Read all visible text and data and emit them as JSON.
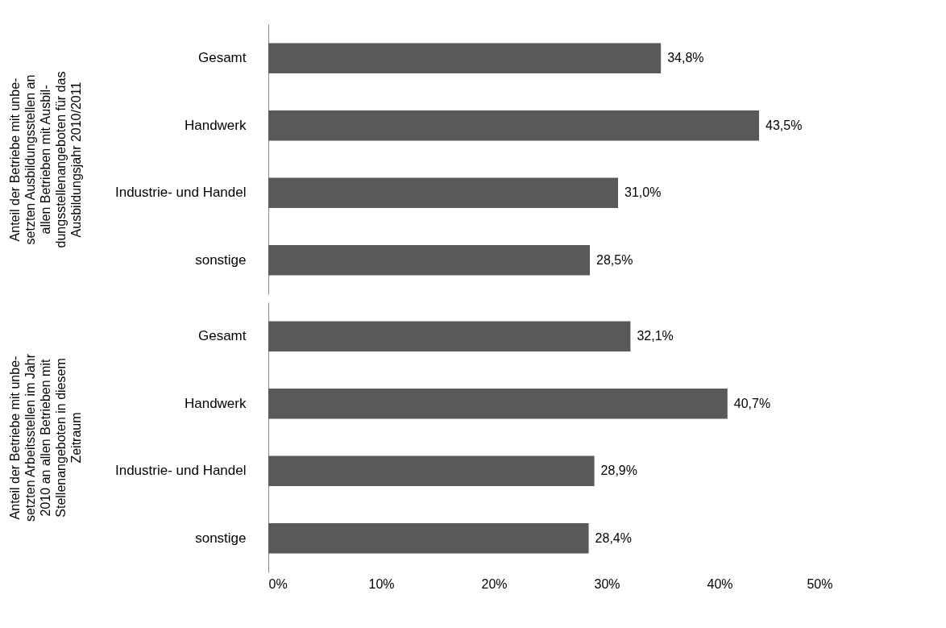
{
  "chart_data": [
    {
      "type": "bar",
      "orientation": "horizontal",
      "ylabel": "Anteil der Betriebe mit unbe-\nsetzten Ausbildungsstellen an\nallen Betrieben mit Ausbil-\ndungsstellenangeboten für das\nAusbildungsjahr 2010/2011",
      "categories": [
        "Gesamt",
        "Handwerk",
        "Industrie- und Handel",
        "sonstige"
      ],
      "values": [
        34.8,
        43.5,
        31.0,
        28.5
      ],
      "value_labels": [
        "34,8%",
        "43,5%",
        "31,0%",
        "28,5%"
      ],
      "color": "#595959",
      "xlim": [
        0,
        50
      ],
      "tick_labels": "y",
      "grid": false
    },
    {
      "type": "bar",
      "orientation": "horizontal",
      "ylabel": "Anteil der Betriebe mit unbe-\nsetzten Arbeitsstellen im Jahr\n2010 an allen Betrieben mit\nStellenangeboten in diesem\nZeitraum",
      "categories": [
        "Gesamt",
        "Handwerk",
        "Industrie- und Handel",
        "sonstige"
      ],
      "values": [
        32.1,
        40.7,
        28.9,
        28.4
      ],
      "value_labels": [
        "32,1%",
        "40,7%",
        "28,9%",
        "28,4%"
      ],
      "color": "#595959",
      "xlim": [
        0,
        50
      ],
      "xticks": [
        {
          "value": 0,
          "label": "0%"
        },
        {
          "value": 10,
          "label": "10%"
        },
        {
          "value": 20,
          "label": "20%"
        },
        {
          "value": 30,
          "label": "30%"
        },
        {
          "value": 40,
          "label": "40%"
        },
        {
          "value": 50,
          "label": "50%"
        }
      ],
      "grid": false
    }
  ]
}
